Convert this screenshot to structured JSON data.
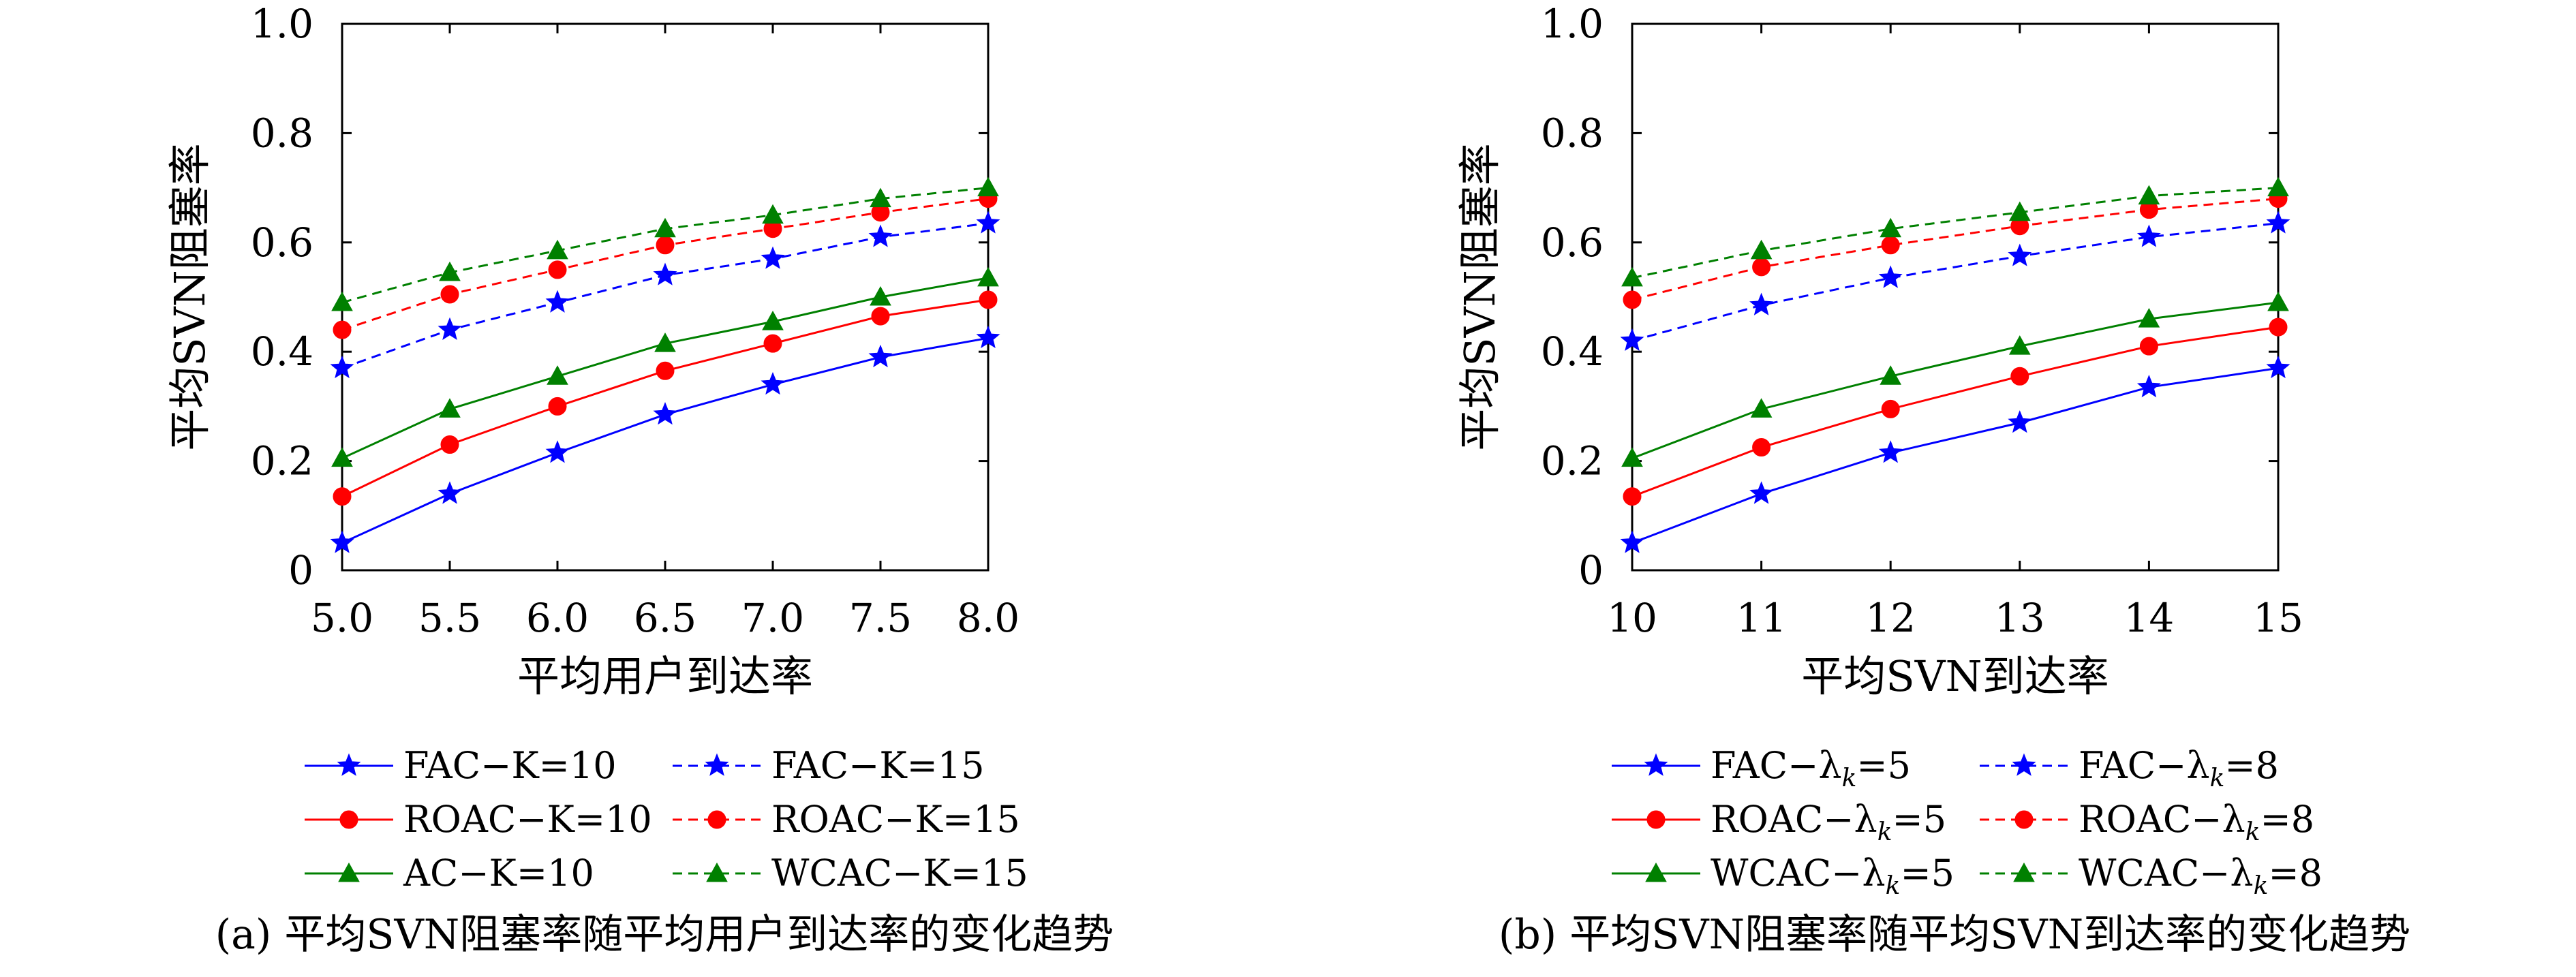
{
  "chart_data": [
    {
      "type": "line",
      "caption": "(a) 平均SVN阻塞率随平均用户到达率的变化趋势",
      "xlabel": "平均用户到达率",
      "ylabel": "平均SVN阻塞率",
      "x": [
        5.0,
        5.5,
        6.0,
        6.5,
        7.0,
        7.5,
        8.0
      ],
      "x_tick_labels": [
        "5.0",
        "5.5",
        "6.0",
        "6.5",
        "7.0",
        "7.5",
        "8.0"
      ],
      "xlim": [
        5.0,
        8.0
      ],
      "ylim": [
        0,
        1.0
      ],
      "y_ticks": [
        0,
        0.2,
        0.4,
        0.6,
        0.8,
        1.0
      ],
      "y_tick_labels": [
        "0",
        "0.2",
        "0.4",
        "0.6",
        "0.8",
        "1.0"
      ],
      "grid": false,
      "legend_position": "bottom",
      "series": [
        {
          "name": "FAC−K=10",
          "color": "#0000ff",
          "marker": "star",
          "dashed": false,
          "values": [
            0.05,
            0.14,
            0.215,
            0.285,
            0.34,
            0.39,
            0.425
          ]
        },
        {
          "name": "FAC−K=15",
          "color": "#0000ff",
          "marker": "star",
          "dashed": true,
          "values": [
            0.37,
            0.44,
            0.49,
            0.54,
            0.57,
            0.61,
            0.635
          ]
        },
        {
          "name": "ROAC−K=10",
          "color": "#ff0000",
          "marker": "circle",
          "dashed": false,
          "values": [
            0.135,
            0.23,
            0.3,
            0.365,
            0.415,
            0.465,
            0.495
          ]
        },
        {
          "name": "ROAC−K=15",
          "color": "#ff0000",
          "marker": "circle",
          "dashed": true,
          "values": [
            0.44,
            0.505,
            0.55,
            0.595,
            0.625,
            0.655,
            0.68
          ]
        },
        {
          "name": "AC−K=10",
          "color": "#008000",
          "marker": "triangle",
          "dashed": false,
          "values": [
            0.205,
            0.295,
            0.355,
            0.415,
            0.455,
            0.5,
            0.535
          ]
        },
        {
          "name": "WCAC−K=15",
          "color": "#008000",
          "marker": "triangle",
          "dashed": true,
          "values": [
            0.49,
            0.545,
            0.585,
            0.625,
            0.65,
            0.68,
            0.7
          ]
        }
      ]
    },
    {
      "type": "line",
      "caption": "(b) 平均SVN阻塞率随平均SVN到达率的变化趋势",
      "xlabel": "平均SVN到达率",
      "ylabel": "平均SVN阻塞率",
      "x": [
        10,
        11,
        12,
        13,
        14,
        15
      ],
      "x_tick_labels": [
        "10",
        "11",
        "12",
        "13",
        "14",
        "15"
      ],
      "xlim": [
        10,
        15
      ],
      "ylim": [
        0,
        1.0
      ],
      "y_ticks": [
        0,
        0.2,
        0.4,
        0.6,
        0.8,
        1.0
      ],
      "y_tick_labels": [
        "0",
        "0.2",
        "0.4",
        "0.6",
        "0.8",
        "1.0"
      ],
      "grid": false,
      "legend_position": "bottom",
      "series": [
        {
          "name": "FAC−λk=5",
          "label_prefix": "FAC−λ",
          "label_sub": "k",
          "label_suffix": "=5",
          "color": "#0000ff",
          "marker": "star",
          "dashed": false,
          "values": [
            0.05,
            0.14,
            0.215,
            0.27,
            0.335,
            0.37
          ]
        },
        {
          "name": "FAC−λk=8",
          "label_prefix": "FAC−λ",
          "label_sub": "k",
          "label_suffix": "=8",
          "color": "#0000ff",
          "marker": "star",
          "dashed": true,
          "values": [
            0.42,
            0.485,
            0.535,
            0.575,
            0.61,
            0.635
          ]
        },
        {
          "name": "ROAC−λk=5",
          "label_prefix": "ROAC−λ",
          "label_sub": "k",
          "label_suffix": "=5",
          "color": "#ff0000",
          "marker": "circle",
          "dashed": false,
          "values": [
            0.135,
            0.225,
            0.295,
            0.355,
            0.41,
            0.445
          ]
        },
        {
          "name": "ROAC−λk=8",
          "label_prefix": "ROAC−λ",
          "label_sub": "k",
          "label_suffix": "=8",
          "color": "#ff0000",
          "marker": "circle",
          "dashed": true,
          "values": [
            0.495,
            0.555,
            0.595,
            0.63,
            0.66,
            0.68
          ]
        },
        {
          "name": "WCAC−λk=5",
          "label_prefix": "WCAC−λ",
          "label_sub": "k",
          "label_suffix": "=5",
          "color": "#008000",
          "marker": "triangle",
          "dashed": false,
          "values": [
            0.205,
            0.295,
            0.355,
            0.41,
            0.46,
            0.49
          ]
        },
        {
          "name": "WCAC−λk=8",
          "label_prefix": "WCAC−λ",
          "label_sub": "k",
          "label_suffix": "=8",
          "color": "#008000",
          "marker": "triangle",
          "dashed": true,
          "values": [
            0.535,
            0.585,
            0.625,
            0.655,
            0.685,
            0.7
          ]
        }
      ]
    }
  ]
}
